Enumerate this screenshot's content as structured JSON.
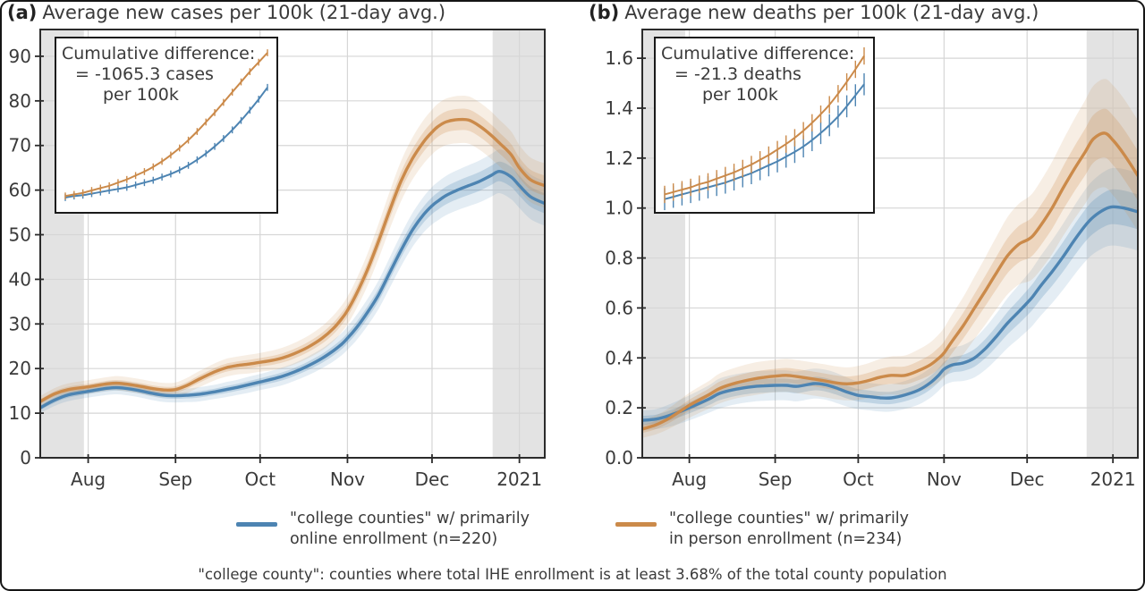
{
  "page": {
    "footer": "\"college county\": counties where total IHE enrollment is at least 3.68% of the total county population"
  },
  "legend": {
    "items": [
      {
        "label_line1": "\"college counties\" w/ primarily",
        "label_line2": "online enrollment (n=220)",
        "color": "#4d84b2"
      },
      {
        "label_line1": "\"college counties\" w/ primarily",
        "label_line2": "in person enrollment (n=234)",
        "color": "#cb8a4a"
      }
    ]
  },
  "chart_data": [
    {
      "type": "line",
      "panel_tag": "(a)",
      "title": "Average new cases per 100k (21-day avg.)",
      "x_unit": "day index (0 = left edge, mid-July; ticks mark month starts)",
      "xlim": [
        0,
        179
      ],
      "x_ticks": {
        "days": [
          17,
          48,
          78,
          109,
          139,
          170
        ],
        "labels": [
          "Aug",
          "Sep",
          "Oct",
          "Nov",
          "Dec",
          "2021"
        ]
      },
      "ylim": [
        0,
        96
      ],
      "y_ticks": {
        "values": [
          0,
          10,
          20,
          30,
          40,
          50,
          60,
          70,
          80,
          90
        ],
        "labels": [
          "0",
          "10",
          "20",
          "30",
          "40",
          "50",
          "60",
          "70",
          "80",
          "90"
        ]
      },
      "grid": true,
      "legend_position": "bottom",
      "shaded_day_ranges": [
        [
          0,
          15.5
        ],
        [
          160.5,
          179
        ]
      ],
      "x_days": [
        0,
        5,
        10,
        17,
        24,
        28,
        34,
        40,
        44,
        48,
        52,
        56,
        62,
        66,
        70,
        74,
        78,
        82,
        86,
        90,
        95,
        100,
        104,
        107,
        109,
        112,
        116,
        120,
        124,
        128,
        132,
        136,
        139,
        141,
        144,
        148,
        152,
        156,
        160,
        163,
        167,
        170,
        174,
        179
      ],
      "series": [
        {
          "name": "online enrollment (n=220)",
          "color": "#4d84b2",
          "values": [
            11.2,
            12.9,
            14.1,
            14.9,
            15.6,
            15.7,
            15.2,
            14.4,
            14.0,
            13.9,
            14.0,
            14.2,
            14.8,
            15.3,
            15.8,
            16.4,
            17.0,
            17.6,
            18.3,
            19.2,
            20.6,
            22.3,
            24.0,
            25.5,
            26.8,
            29.0,
            32.5,
            36.5,
            41.5,
            46.5,
            51.0,
            54.5,
            56.5,
            57.5,
            58.8,
            60.0,
            61.0,
            62.0,
            63.3,
            64.2,
            63.0,
            61.0,
            58.5,
            57.0
          ],
          "band_halfwidth": [
            1.2,
            1.3,
            1.4,
            1.4,
            1.5,
            1.5,
            1.5,
            1.5,
            1.5,
            1.5,
            1.5,
            1.6,
            1.6,
            1.7,
            1.7,
            1.8,
            1.8,
            1.9,
            2.0,
            2.0,
            2.1,
            2.2,
            2.4,
            2.5,
            2.6,
            2.8,
            3.0,
            3.2,
            3.4,
            3.6,
            3.8,
            4.0,
            4.2,
            4.3,
            4.4,
            4.5,
            4.6,
            4.7,
            4.8,
            4.9,
            5.0,
            5.0,
            5.0,
            5.0
          ]
        },
        {
          "name": "in person enrollment (n=234)",
          "color": "#cb8a4a",
          "values": [
            12.6,
            14.3,
            15.3,
            15.9,
            16.6,
            16.7,
            16.2,
            15.5,
            15.2,
            15.3,
            16.2,
            17.5,
            19.3,
            20.2,
            20.7,
            21.0,
            21.4,
            21.8,
            22.4,
            23.3,
            24.8,
            26.8,
            29.0,
            31.2,
            33.0,
            36.5,
            42.0,
            48.5,
            55.5,
            62.0,
            67.0,
            70.8,
            73.0,
            74.2,
            75.3,
            75.8,
            75.7,
            74.3,
            72.3,
            70.5,
            68.0,
            65.0,
            62.3,
            61.0
          ],
          "band_halfwidth": [
            1.2,
            1.3,
            1.4,
            1.5,
            1.5,
            1.6,
            1.6,
            1.6,
            1.6,
            1.6,
            1.7,
            1.8,
            1.9,
            2.0,
            2.0,
            2.1,
            2.1,
            2.2,
            2.3,
            2.4,
            2.5,
            2.7,
            2.9,
            3.0,
            3.1,
            3.3,
            3.6,
            3.9,
            4.2,
            4.5,
            4.7,
            4.9,
            5.0,
            5.1,
            5.2,
            5.3,
            5.3,
            5.3,
            5.3,
            5.2,
            5.2,
            5.1,
            5.0,
            5.0
          ]
        }
      ],
      "inset": {
        "text_lines": [
          "Cumulative difference:",
          "= -1065.3 cases",
          "per 100k"
        ],
        "series": [
          {
            "name": "online",
            "color": "#4d84b2",
            "err": 2.2,
            "values": [
              4,
              5,
              5.5,
              6.5,
              7.5,
              8.5,
              9.5,
              10.5,
              12,
              13.5,
              15,
              17,
              19,
              21.5,
              24.5,
              28,
              32,
              36.5,
              41.5,
              47,
              53,
              59.5,
              66.5,
              74
            ]
          },
          {
            "name": "in person",
            "color": "#cb8a4a",
            "err": 2.2,
            "values": [
              5,
              6,
              7,
              8.5,
              10,
              11.5,
              13.5,
              15.5,
              18,
              20.5,
              23.5,
              27,
              31,
              35.5,
              40.5,
              46,
              52,
              58,
              64.5,
              71,
              77.5,
              84,
              90,
              96
            ]
          }
        ]
      }
    },
    {
      "type": "line",
      "panel_tag": "(b)",
      "title": "Average new deaths per 100k (21-day avg.)",
      "x_unit": "day index (0 = left edge, mid-July; ticks mark month starts)",
      "xlim": [
        0,
        179
      ],
      "x_ticks": {
        "days": [
          17,
          48,
          78,
          109,
          139,
          170
        ],
        "labels": [
          "Aug",
          "Sep",
          "Oct",
          "Nov",
          "Dec",
          "2021"
        ]
      },
      "ylim": [
        0,
        1.715
      ],
      "y_ticks": {
        "values": [
          0,
          0.2,
          0.4,
          0.6,
          0.8,
          1.0,
          1.2,
          1.4,
          1.6
        ],
        "labels": [
          "0.0",
          "0.2",
          "0.4",
          "0.6",
          "0.8",
          "1.0",
          "1.2",
          "1.4",
          "1.6"
        ]
      },
      "grid": true,
      "legend_position": "bottom",
      "shaded_day_ranges": [
        [
          0,
          15.5
        ],
        [
          160.5,
          179
        ]
      ],
      "x_days": [
        0,
        5,
        10,
        17,
        24,
        28,
        34,
        40,
        44,
        48,
        52,
        56,
        62,
        66,
        70,
        74,
        78,
        82,
        86,
        90,
        95,
        100,
        104,
        107,
        109,
        112,
        116,
        120,
        124,
        128,
        132,
        136,
        139,
        141,
        144,
        148,
        152,
        156,
        160,
        163,
        167,
        170,
        174,
        179
      ],
      "series": [
        {
          "name": "online enrollment (n=220)",
          "color": "#4d84b2",
          "values": [
            0.15,
            0.155,
            0.17,
            0.2,
            0.235,
            0.258,
            0.275,
            0.285,
            0.288,
            0.29,
            0.29,
            0.286,
            0.297,
            0.293,
            0.28,
            0.263,
            0.25,
            0.245,
            0.24,
            0.24,
            0.252,
            0.272,
            0.3,
            0.33,
            0.355,
            0.372,
            0.38,
            0.4,
            0.438,
            0.487,
            0.54,
            0.585,
            0.62,
            0.645,
            0.69,
            0.745,
            0.805,
            0.87,
            0.93,
            0.965,
            0.995,
            1.005,
            1.0,
            0.985
          ],
          "band_halfwidth": [
            0.04,
            0.04,
            0.045,
            0.05,
            0.055,
            0.06,
            0.06,
            0.06,
            0.06,
            0.06,
            0.06,
            0.06,
            0.06,
            0.06,
            0.06,
            0.058,
            0.055,
            0.055,
            0.055,
            0.055,
            0.056,
            0.058,
            0.06,
            0.062,
            0.065,
            0.068,
            0.072,
            0.078,
            0.085,
            0.092,
            0.1,
            0.107,
            0.112,
            0.115,
            0.12,
            0.126,
            0.132,
            0.138,
            0.144,
            0.148,
            0.152,
            0.155,
            0.156,
            0.155
          ]
        },
        {
          "name": "in person enrollment (n=234)",
          "color": "#cb8a4a",
          "values": [
            0.115,
            0.132,
            0.16,
            0.21,
            0.252,
            0.278,
            0.3,
            0.315,
            0.322,
            0.327,
            0.33,
            0.325,
            0.315,
            0.308,
            0.3,
            0.296,
            0.3,
            0.31,
            0.323,
            0.33,
            0.33,
            0.35,
            0.372,
            0.398,
            0.42,
            0.468,
            0.53,
            0.6,
            0.67,
            0.742,
            0.81,
            0.855,
            0.872,
            0.888,
            0.932,
            1.0,
            1.08,
            1.155,
            1.225,
            1.278,
            1.3,
            1.272,
            1.215,
            1.13
          ],
          "band_halfwidth": [
            0.035,
            0.038,
            0.042,
            0.05,
            0.055,
            0.06,
            0.062,
            0.065,
            0.065,
            0.065,
            0.066,
            0.066,
            0.066,
            0.066,
            0.066,
            0.066,
            0.068,
            0.07,
            0.073,
            0.076,
            0.08,
            0.085,
            0.09,
            0.095,
            0.1,
            0.107,
            0.115,
            0.125,
            0.135,
            0.145,
            0.155,
            0.162,
            0.168,
            0.172,
            0.178,
            0.185,
            0.192,
            0.2,
            0.207,
            0.212,
            0.217,
            0.22,
            0.222,
            0.222
          ]
        }
      ],
      "inset": {
        "text_lines": [
          "Cumulative difference:",
          "= -21.3 deaths",
          "per 100k"
        ],
        "series": [
          {
            "name": "online",
            "color": "#4d84b2",
            "err": 7,
            "values": [
              3,
              4.5,
              6,
              7.5,
              9,
              10.5,
              12,
              13.5,
              15.5,
              17.5,
              19.5,
              22,
              24.5,
              27,
              30,
              33,
              36.5,
              40.5,
              45,
              50,
              55.5,
              62,
              69,
              76
            ]
          },
          {
            "name": "in person",
            "color": "#cb8a4a",
            "err": 5.5,
            "values": [
              6,
              7.5,
              9,
              10.5,
              12.5,
              14,
              16,
              18,
              20,
              22.5,
              25,
              28,
              31,
              34.5,
              38,
              42,
              46.5,
              51.5,
              57,
              63,
              70,
              77.5,
              85.5,
              94
            ]
          }
        ]
      }
    }
  ]
}
